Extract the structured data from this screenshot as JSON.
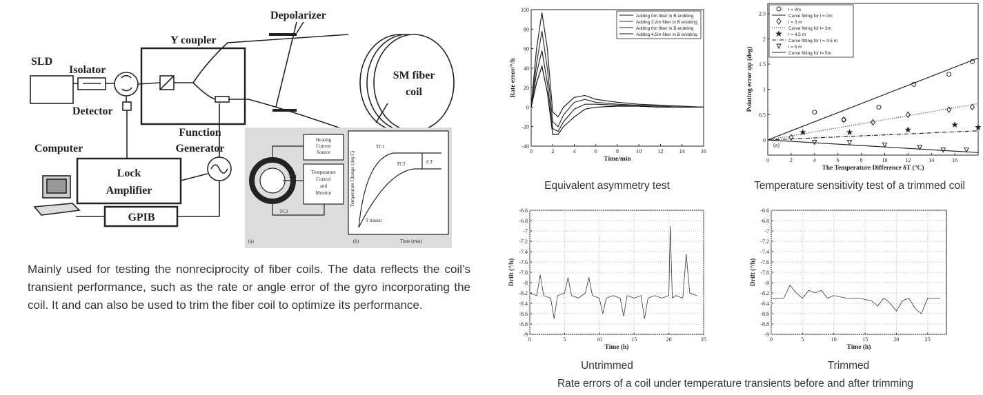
{
  "diagram": {
    "sld": "SLD",
    "isolator": "Isolator",
    "detector": "Detector",
    "computer": "Computer",
    "lock_amplifier": [
      "Lock",
      "Amplifier"
    ],
    "gpib": "GPIB",
    "function_generator": [
      "Function",
      "Generator"
    ],
    "y_coupler": "Y coupler",
    "depolarizer": "Depolarizer",
    "coil": [
      "SM fiber",
      "coil"
    ],
    "inset": {
      "heating": [
        "Heating",
        "Current",
        "Source"
      ],
      "control": [
        "Temperature",
        "Control",
        "and",
        "Monitor"
      ],
      "tc1": "TC1",
      "tc2": "TC2",
      "tc1_b": "TC1",
      "tc2_b": "TC2",
      "label_a": "(a)",
      "label_b": "(b)",
      "delta_t": "δ T",
      "time": "Time (min)",
      "temp_axis": "Temperature Change (deg C)",
      "transit": "T transit"
    }
  },
  "description": "Mainly used for testing the nonreciprocity of fiber coils.  The data reflects the coil’s transient performance, such as the rate or angle error of the gyro incorporating the coil. It and can also be used to trim the fiber coil to optimize its performance.",
  "figures": [
    {
      "caption": "Equivalent asymmetry test",
      "chart": {
        "type": "line",
        "xlabel": "Time/min",
        "ylabel": "Rate error/°/h",
        "x": [
          0,
          0.5,
          1,
          1.5,
          2,
          2.5,
          3,
          4,
          5,
          6,
          8,
          10,
          12,
          14,
          16
        ],
        "xlim": [
          0,
          16
        ],
        "xticks": [
          0,
          2,
          4,
          6,
          8,
          10,
          12,
          14,
          16
        ],
        "ylim": [
          -40,
          100
        ],
        "yticks": [
          -40,
          -20,
          0,
          20,
          40,
          60,
          80,
          100
        ],
        "grid": false,
        "legend": "upper right",
        "series": [
          {
            "name": "Adding 0m fiber in B endding",
            "color": "#222",
            "values": [
              0,
              60,
              97,
              60,
              -5,
              -10,
              0,
              10,
              12,
              8,
              5,
              3,
              2,
              1,
              0
            ]
          },
          {
            "name": "Adding 3.2m fiber in B endding",
            "color": "#333",
            "values": [
              0,
              45,
              78,
              40,
              -15,
              -20,
              -8,
              5,
              8,
              5,
              3,
              2,
              1,
              0,
              0
            ]
          },
          {
            "name": "Adding 6m fiber in B endding",
            "color": "#222",
            "values": [
              0,
              35,
              58,
              25,
              -22,
              -25,
              -15,
              -2,
              3,
              3,
              2,
              1,
              0,
              0,
              0
            ]
          },
          {
            "name": "Adding 4.5m fiber in B endding",
            "color": "#111",
            "values": [
              0,
              25,
              42,
              15,
              -28,
              -28,
              -20,
              -10,
              -2,
              0,
              1,
              1,
              0,
              0,
              0
            ]
          }
        ]
      }
    },
    {
      "caption": "Temperature sensitivity test of a trimmed coil",
      "chart": {
        "type": "scatter",
        "xlabel": "The Temperature Difference δT (°C)",
        "ylabel": "Pointing error ψp (deg)",
        "annotation": "(a)",
        "xlim": [
          0,
          18
        ],
        "xticks": [
          0,
          2,
          4,
          6,
          8,
          10,
          12,
          14,
          16
        ],
        "ylim": [
          -0.3,
          2.7
        ],
        "yticks": [
          0,
          0.5,
          1,
          1.5,
          2,
          2.5
        ],
        "grid": false,
        "legend": "upper left",
        "series": [
          {
            "name": "l = 0m",
            "color": "#222",
            "marker": "circle",
            "x": [
              4,
              6.5,
              9.5,
              12.5,
              15.5,
              17.5
            ],
            "values": [
              0.55,
              0.4,
              0.65,
              1.1,
              1.3,
              1.55
            ]
          },
          {
            "name": "Curve fitting for l = 0m",
            "color": "#222",
            "dash": "none",
            "x": [
              0,
              18
            ],
            "values": [
              0,
              1.62
            ]
          },
          {
            "name": "l = 3 m",
            "color": "#222",
            "marker": "diamond",
            "x": [
              2,
              6.5,
              9,
              12,
              15.5,
              17.5
            ],
            "values": [
              0.05,
              0.4,
              0.35,
              0.5,
              0.6,
              0.65
            ]
          },
          {
            "name": "Curve fitting for l= 3m",
            "color": "#222",
            "dash": "1 2",
            "x": [
              0,
              18
            ],
            "values": [
              0,
              0.72
            ]
          },
          {
            "name": "l = 4.5 m",
            "color": "#222",
            "marker": "star",
            "x": [
              3,
              7,
              12,
              16,
              18
            ],
            "values": [
              0.15,
              0.15,
              0.2,
              0.3,
              0.25
            ]
          },
          {
            "name": "Curve fitting for l = 4.5 m",
            "color": "#222",
            "dash": "6 2 1 2",
            "x": [
              0,
              18
            ],
            "values": [
              0,
              0.18
            ]
          },
          {
            "name": "l = 5 m",
            "color": "#222",
            "marker": "triangle",
            "x": [
              4,
              7,
              10,
              13,
              15,
              17
            ],
            "values": [
              -0.05,
              -0.05,
              -0.1,
              -0.15,
              -0.2,
              -0.2
            ]
          },
          {
            "name": "Curve fitting for l= 5m",
            "color": "#222",
            "dash": "none",
            "x": [
              0,
              18
            ],
            "values": [
              0,
              -0.25
            ]
          }
        ]
      }
    },
    {
      "caption": "Untrimmed",
      "chart": {
        "type": "line",
        "xlabel": "Time (h)",
        "ylabel": "Drift (°/h)",
        "x": [
          0,
          1,
          1.5,
          2,
          3,
          3.5,
          4,
          5,
          5.5,
          6,
          7,
          8,
          8.5,
          9,
          10,
          10.5,
          11,
          12,
          13,
          13.5,
          14,
          15,
          16,
          16.5,
          17,
          18,
          19,
          20,
          20.2,
          20.5,
          21,
          22,
          22.5,
          23,
          24
        ],
        "xlim": [
          0,
          25
        ],
        "xticks": [
          0,
          5,
          10,
          15,
          20,
          25
        ],
        "ylim": [
          -9,
          -6.6
        ],
        "yticks": [
          -9,
          -8.8,
          -8.6,
          -8.4,
          -8.2,
          -8,
          -7.8,
          -7.6,
          -7.4,
          -7.2,
          -7,
          -6.8,
          -6.6
        ],
        "grid": true,
        "series": [
          {
            "color": "#333",
            "values": [
              -8.2,
              -8.25,
              -7.85,
              -8.25,
              -8.3,
              -8.7,
              -8.25,
              -8.2,
              -7.9,
              -8.25,
              -8.3,
              -8.2,
              -7.9,
              -8.25,
              -8.3,
              -8.6,
              -8.3,
              -8.25,
              -8.3,
              -8.65,
              -8.25,
              -8.3,
              -8.25,
              -8.7,
              -8.3,
              -8.25,
              -8.3,
              -8.25,
              -6.9,
              -8.3,
              -8.25,
              -8.3,
              -7.45,
              -8.2,
              -8.25
            ]
          }
        ]
      }
    },
    {
      "caption": "Trimmed",
      "chart": {
        "type": "line",
        "xlabel": "Time (h)",
        "ylabel": "Drift (°/h)",
        "x": [
          0,
          2,
          3,
          4,
          5,
          6,
          7,
          8,
          9,
          10,
          12,
          14,
          16,
          17,
          18,
          19,
          20,
          21,
          22,
          23,
          24,
          25,
          26,
          27
        ],
        "xlim": [
          0,
          28
        ],
        "xticks": [
          0,
          5,
          10,
          15,
          20,
          25
        ],
        "ylim": [
          -9,
          -6.6
        ],
        "yticks": [
          -9,
          -8.8,
          -8.6,
          -8.4,
          -8.2,
          -8,
          -7.8,
          -7.6,
          -7.4,
          -7.2,
          -7,
          -6.8,
          -6.6
        ],
        "grid": true,
        "series": [
          {
            "color": "#333",
            "values": [
              -8.3,
              -8.3,
              -8.05,
              -8.2,
              -8.3,
              -8.15,
              -8.2,
              -8.15,
              -8.3,
              -8.25,
              -8.3,
              -8.3,
              -8.35,
              -8.45,
              -8.3,
              -8.4,
              -8.55,
              -8.35,
              -8.3,
              -8.5,
              -8.6,
              -8.3,
              -8.3,
              -8.3
            ]
          }
        ]
      }
    }
  ],
  "figures_caption": "Rate errors of a coil under temperature transients before and after trimming"
}
